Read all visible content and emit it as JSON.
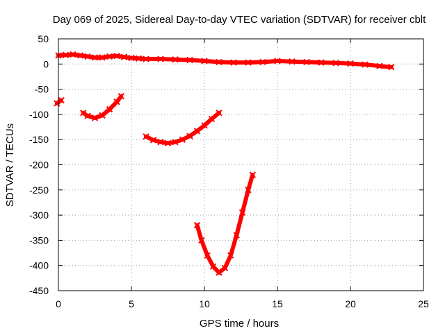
{
  "chart_data": {
    "type": "scatter",
    "title": "Day 069 of 2025, Sidereal Day-to-day VTEC variation (SDTVAR) for receiver cblt",
    "xlabel": "GPS time / hours",
    "ylabel": "SDTVAR / TECUs",
    "xlim": [
      0,
      25
    ],
    "ylim": [
      -450,
      50
    ],
    "xticks": [
      0,
      5,
      10,
      15,
      20,
      25
    ],
    "yticks": [
      50,
      0,
      -50,
      -100,
      -150,
      -200,
      -250,
      -300,
      -350,
      -400,
      -450
    ],
    "grid": true,
    "legend": "none",
    "color": "#ff0000",
    "series": [
      {
        "x": [
          0.0,
          0.5,
          1.0,
          1.5,
          2.0,
          2.5,
          3.0,
          3.5,
          4.0,
          4.5,
          5.0,
          5.5,
          6.0,
          7.0,
          8.0,
          9.0,
          10.0,
          11.0,
          12.0,
          13.0,
          14.0,
          15.0,
          16.0,
          17.0,
          18.0,
          19.0,
          20.0,
          21.0,
          22.0,
          22.8
        ],
        "y": [
          17,
          18,
          19,
          17,
          15,
          13,
          13,
          15,
          16,
          14,
          12,
          11,
          10,
          10,
          9,
          8,
          6,
          4,
          3,
          3,
          4,
          6,
          5,
          4,
          3,
          2,
          1,
          -1,
          -4,
          -6
        ]
      },
      {
        "x": [
          -0.1,
          0.2
        ],
        "y": [
          -78,
          -72
        ]
      },
      {
        "x": [
          1.7,
          2.0,
          2.5,
          3.0,
          3.5,
          4.0,
          4.3
        ],
        "y": [
          -97,
          -103,
          -107,
          -102,
          -90,
          -75,
          -64
        ]
      },
      {
        "x": [
          6.0,
          6.5,
          7.0,
          7.5,
          8.0,
          8.5,
          9.0,
          9.5,
          10.0,
          10.5,
          11.0
        ],
        "y": [
          -144,
          -151,
          -155,
          -157,
          -155,
          -150,
          -143,
          -133,
          -122,
          -109,
          -97
        ]
      },
      {
        "x": [
          9.5,
          9.8,
          10.2,
          10.6,
          11.0,
          11.4,
          11.8,
          12.2,
          12.6,
          13.0,
          13.3
        ],
        "y": [
          -320,
          -350,
          -380,
          -402,
          -414,
          -405,
          -380,
          -340,
          -295,
          -250,
          -220
        ]
      }
    ]
  }
}
